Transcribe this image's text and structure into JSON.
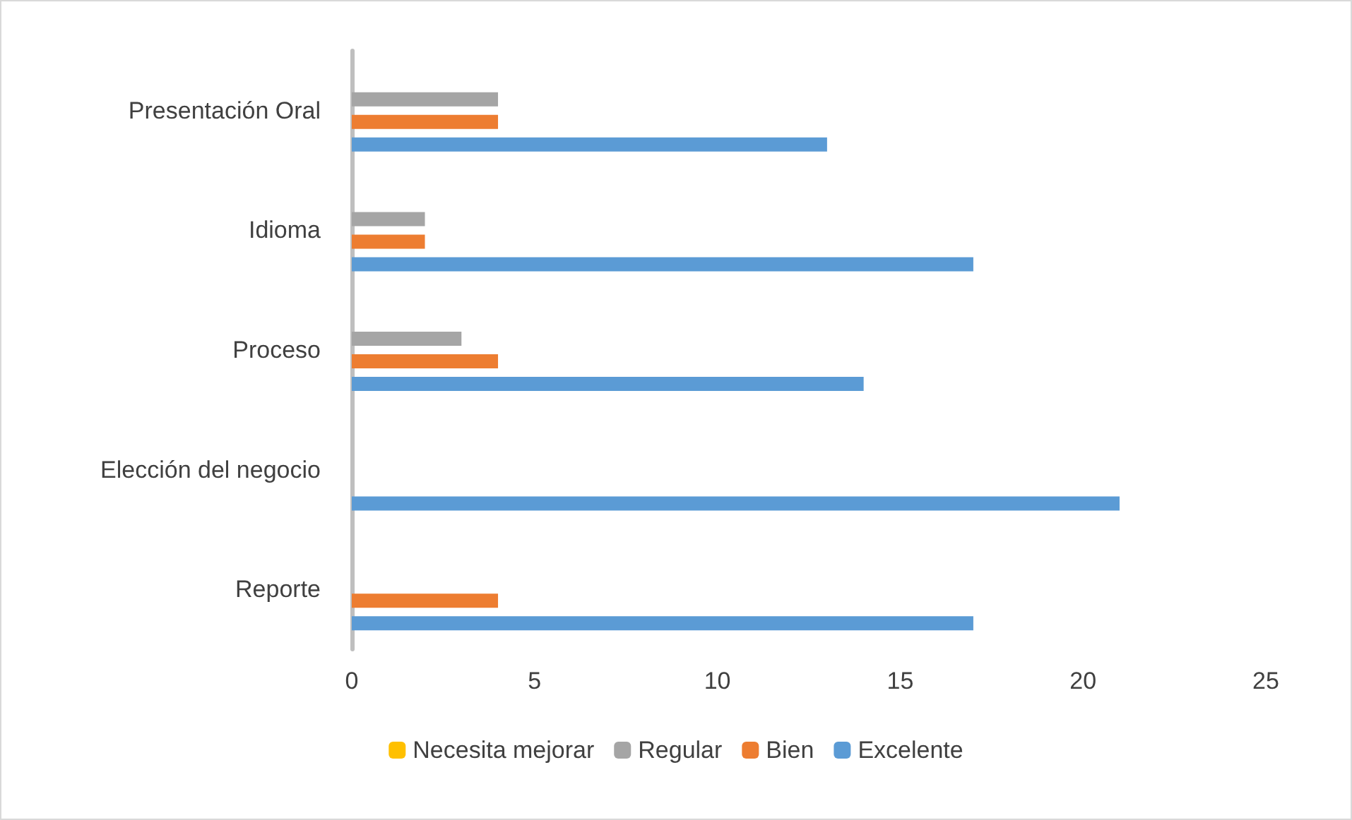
{
  "chart_data": {
    "type": "bar",
    "orientation": "horizontal",
    "categories": [
      "Presentación Oral",
      "Idioma",
      "Proceso",
      "Elección del negocio",
      "Reporte"
    ],
    "series": [
      {
        "name": "Necesita mejorar",
        "color": "#ffc000",
        "values": [
          0,
          0,
          0,
          0,
          0
        ]
      },
      {
        "name": "Regular",
        "color": "#a5a5a5",
        "values": [
          4,
          2,
          3,
          0,
          0
        ]
      },
      {
        "name": "Bien",
        "color": "#ed7d31",
        "values": [
          4,
          2,
          4,
          0,
          4
        ]
      },
      {
        "name": "Excelente",
        "color": "#5b9bd5",
        "values": [
          13,
          17,
          14,
          21,
          17
        ]
      }
    ],
    "xlim": [
      0,
      25
    ],
    "xticks": [
      0,
      5,
      10,
      15,
      20,
      25
    ],
    "grid": false,
    "legend": "bottom"
  }
}
